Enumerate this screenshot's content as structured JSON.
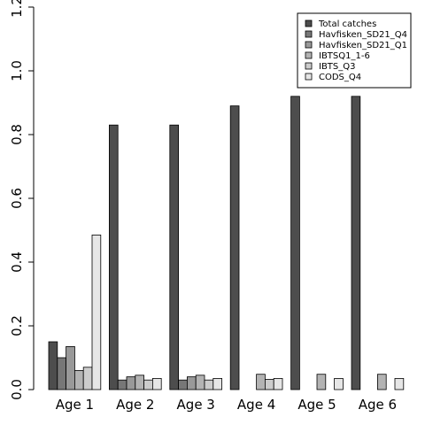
{
  "chart_data": {
    "type": "bar",
    "categories": [
      "Age 1",
      "Age 2",
      "Age 3",
      "Age 4",
      "Age 5",
      "Age 6"
    ],
    "series": [
      {
        "name": "Total catches",
        "color": "#4d4d4d",
        "values": [
          0.15,
          0.83,
          0.83,
          0.89,
          0.92,
          0.92
        ]
      },
      {
        "name": "Havfisken_SD21_Q4",
        "color": "#777777",
        "values": [
          0.1,
          0.03,
          0.03,
          0.0,
          0.0,
          0.0
        ]
      },
      {
        "name": "Havfisken_SD21_Q1",
        "color": "#999999",
        "values": [
          0.135,
          0.04,
          0.04,
          0.0,
          0.0,
          0.0
        ]
      },
      {
        "name": "IBTSQ1_1-6",
        "color": "#b3b3b3",
        "values": [
          0.06,
          0.045,
          0.045,
          0.048,
          0.048,
          0.048
        ]
      },
      {
        "name": "IBTS_Q3",
        "color": "#cccccc",
        "values": [
          0.07,
          0.03,
          0.03,
          0.032,
          0.0,
          0.0
        ]
      },
      {
        "name": "CODS_Q4",
        "color": "#e6e6e6",
        "values": [
          0.485,
          0.035,
          0.035,
          0.035,
          0.035,
          0.035
        ]
      }
    ],
    "yticks": [
      "0.0",
      "0.2",
      "0.4",
      "0.6",
      "0.8",
      "1.0",
      "1.2"
    ],
    "ylim": [
      0,
      1.2
    ],
    "legend_position": "top-right",
    "grid": false
  }
}
